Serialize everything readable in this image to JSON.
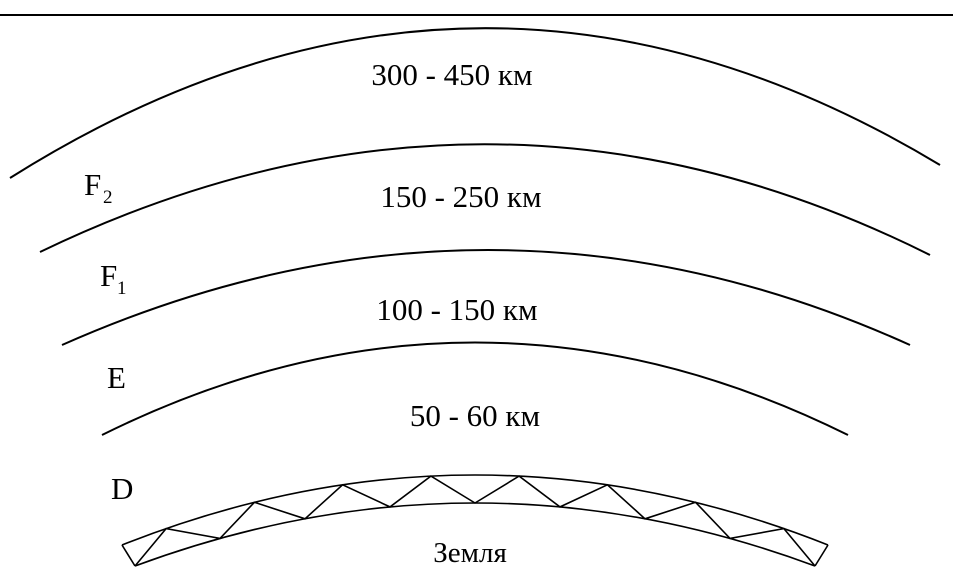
{
  "diagram": {
    "ranges": [
      {
        "layer": "F2",
        "altitude": "300 - 450 км"
      },
      {
        "layer": "F1",
        "altitude": "150 - 250 км"
      },
      {
        "layer": "E",
        "altitude": "100 - 150 км"
      },
      {
        "layer": "D",
        "altitude": "50 - 60 км"
      }
    ],
    "layers": {
      "f2": {
        "letter": "F",
        "sub": "2"
      },
      "f1": {
        "letter": "F",
        "sub": "1"
      },
      "e": {
        "letter": "E"
      },
      "d": {
        "letter": "D"
      }
    },
    "earth_label": "Земля",
    "colors": {
      "line": "#000000",
      "background": "#ffffff"
    }
  }
}
